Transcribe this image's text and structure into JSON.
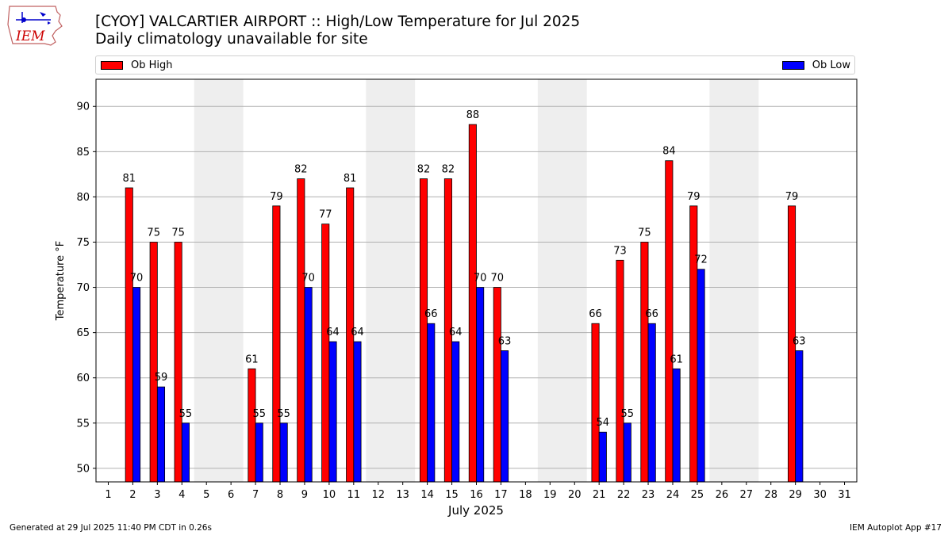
{
  "header": {
    "title": "[CYOY] VALCARTIER AIRPORT :: High/Low Temperature for Jul 2025",
    "subtitle": "Daily climatology unavailable for site"
  },
  "logo": {
    "text": "IEM",
    "icon": "iem-logo-icon"
  },
  "legend": {
    "high_label": "Ob High",
    "low_label": "Ob Low"
  },
  "colors": {
    "high": "#ff0000",
    "low": "#0000ff",
    "weekend_band": "#eeeeee",
    "grid": "#b0b0b0"
  },
  "footer": {
    "generated": "Generated at 29 Jul 2025 11:40 PM CDT in 0.26s",
    "app": "IEM Autoplot App #17"
  },
  "chart_data": {
    "type": "bar",
    "xlabel": "July 2025",
    "ylabel": "Temperature °F",
    "ylim": [
      48.5,
      93
    ],
    "xlim": [
      0.5,
      31.5
    ],
    "yticks": [
      50,
      55,
      60,
      65,
      70,
      75,
      80,
      85,
      90
    ],
    "categories": [
      "1",
      "2",
      "3",
      "4",
      "5",
      "6",
      "7",
      "8",
      "9",
      "10",
      "11",
      "12",
      "13",
      "14",
      "15",
      "16",
      "17",
      "18",
      "19",
      "20",
      "21",
      "22",
      "23",
      "24",
      "25",
      "26",
      "27",
      "28",
      "29",
      "30",
      "31"
    ],
    "series": [
      {
        "name": "Ob High",
        "values": [
          null,
          81,
          75,
          75,
          null,
          null,
          61,
          79,
          82,
          77,
          81,
          null,
          null,
          82,
          82,
          88,
          70,
          null,
          null,
          null,
          66,
          73,
          75,
          84,
          79,
          null,
          null,
          null,
          79,
          null,
          null
        ]
      },
      {
        "name": "Ob Low",
        "values": [
          null,
          70,
          59,
          55,
          null,
          null,
          55,
          55,
          70,
          64,
          64,
          null,
          null,
          66,
          64,
          70,
          63,
          null,
          null,
          null,
          54,
          55,
          66,
          61,
          72,
          null,
          null,
          null,
          63,
          null,
          null
        ]
      }
    ],
    "weekend_bands": [
      [
        4.5,
        6.5
      ],
      [
        11.5,
        13.5
      ],
      [
        18.5,
        20.5
      ],
      [
        25.5,
        27.5
      ]
    ],
    "grid": "horizontal",
    "legend_placement": "top"
  }
}
